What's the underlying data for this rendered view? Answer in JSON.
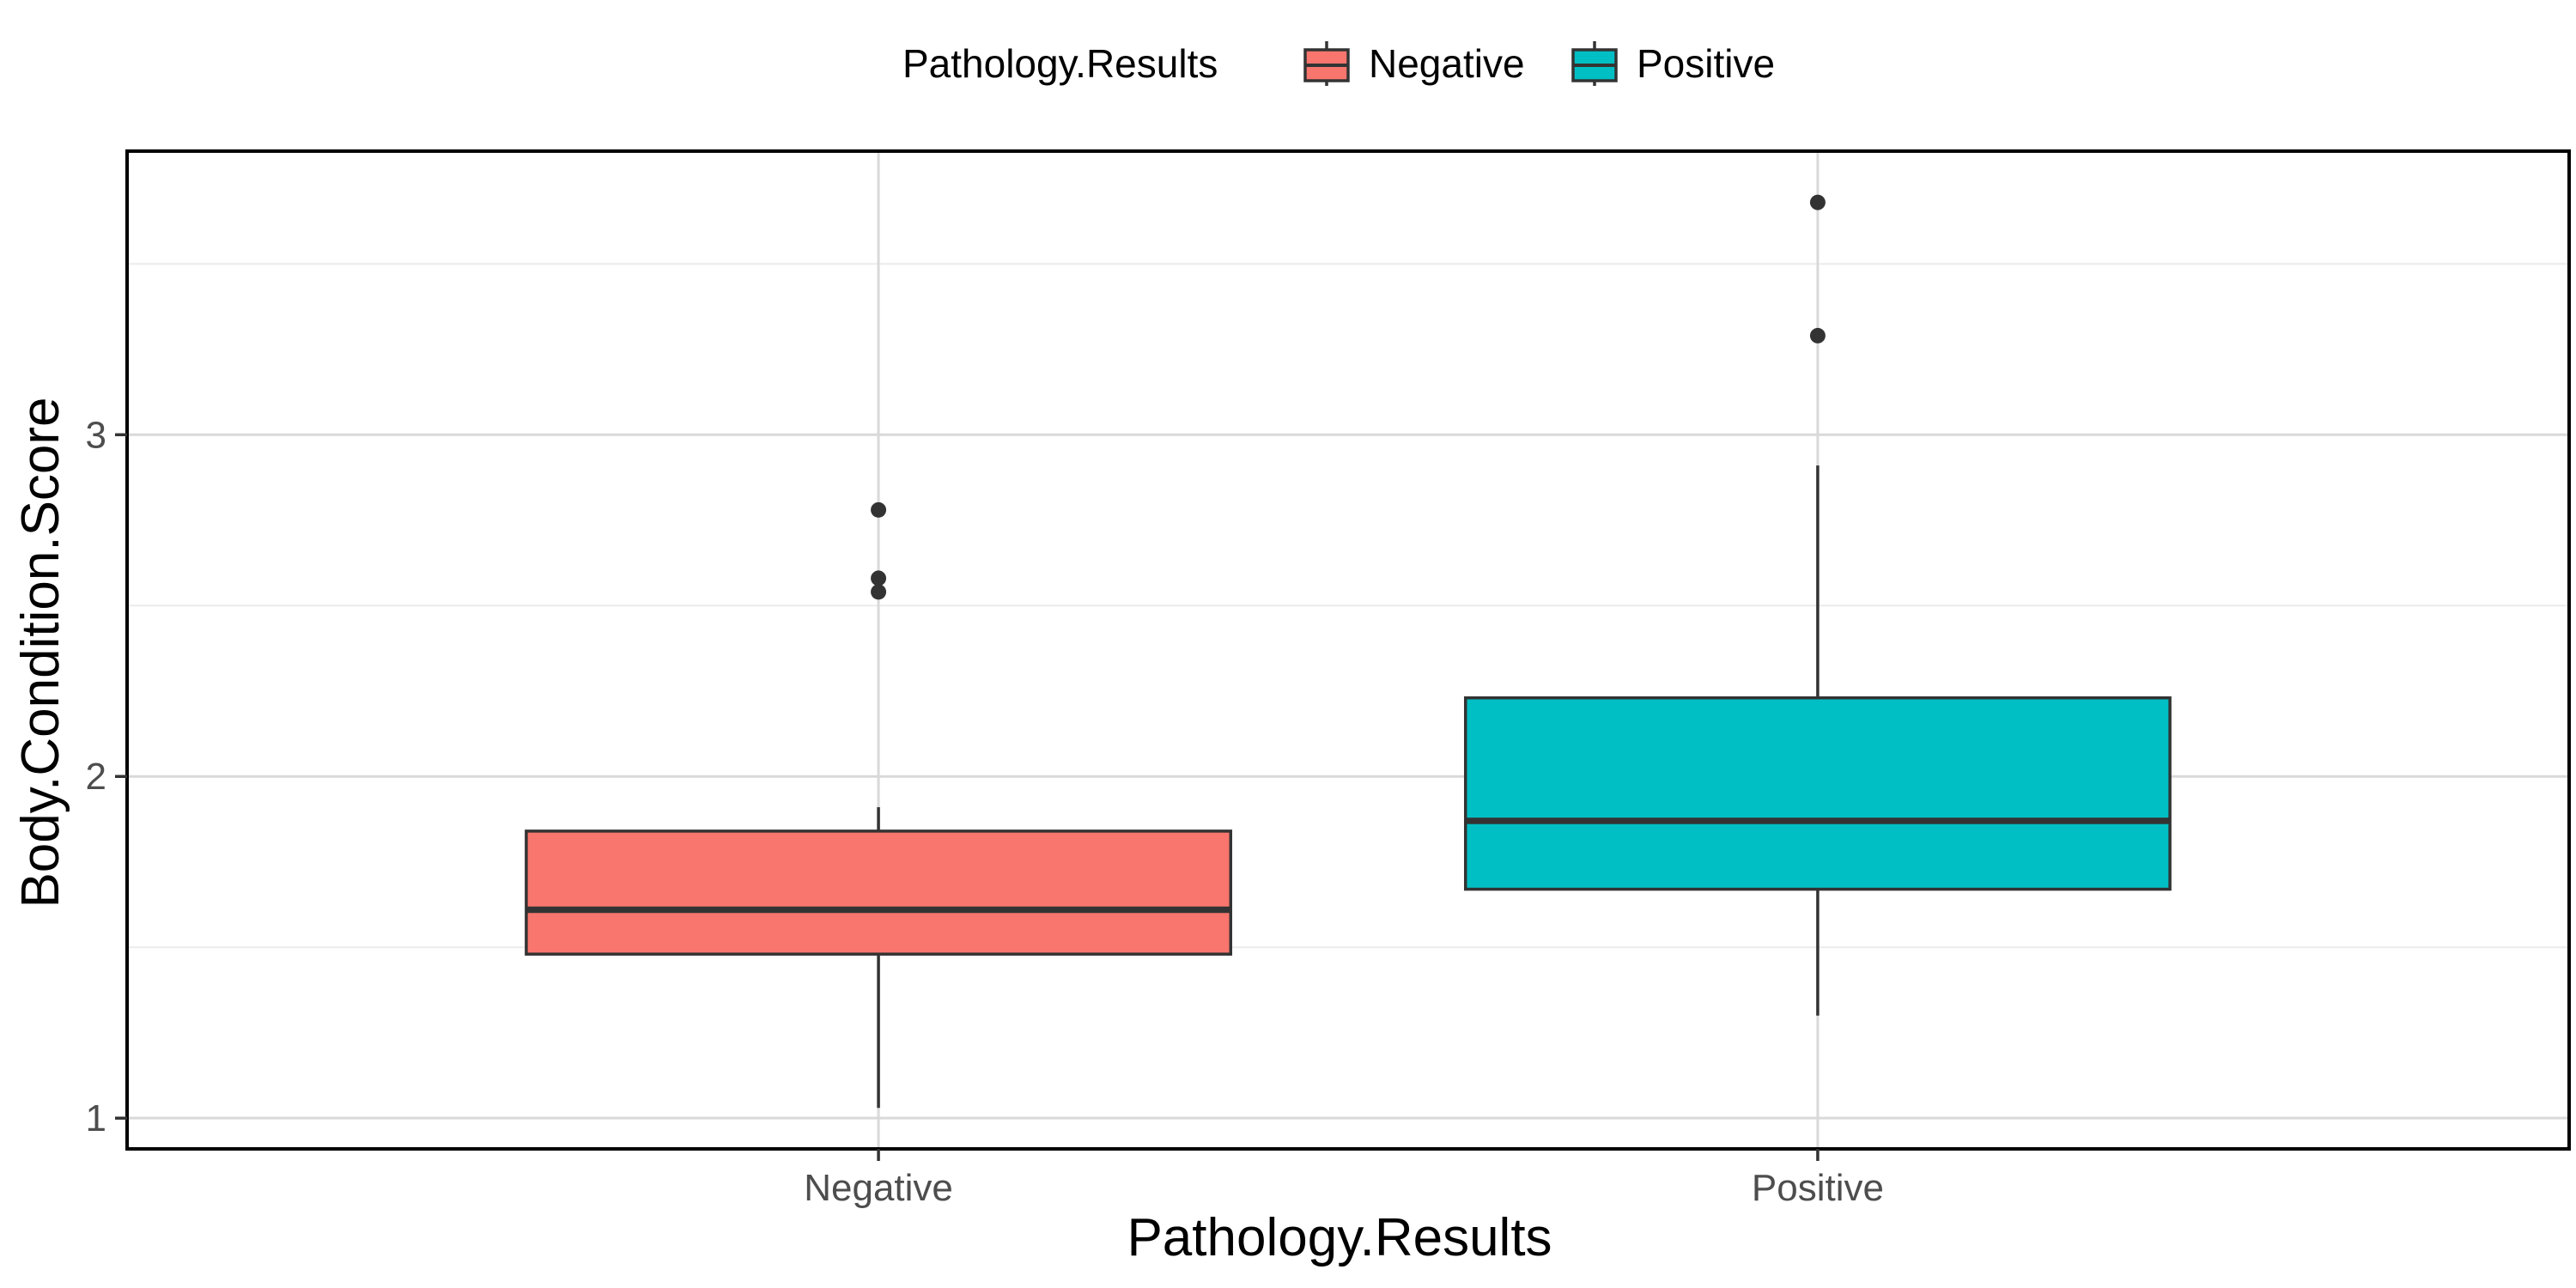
{
  "chart_data": {
    "type": "box",
    "xlabel": "Pathology.Results",
    "ylabel": "Body.Condition.Score",
    "categories": [
      "Negative",
      "Positive"
    ],
    "ylim": [
      0.91,
      3.83
    ],
    "yticks": [
      1,
      2,
      3
    ],
    "grid": true,
    "legend": {
      "title": "Pathology.Results",
      "position": "top",
      "entries": [
        "Negative",
        "Positive"
      ]
    },
    "series": [
      {
        "name": "Negative",
        "color": "#F8766D",
        "whisker_low": 1.03,
        "q1": 1.48,
        "median": 1.61,
        "q3": 1.84,
        "whisker_high": 1.91,
        "outliers": [
          2.54,
          2.58,
          2.78
        ]
      },
      {
        "name": "Positive",
        "color": "#00BFC4",
        "whisker_low": 1.3,
        "q1": 1.67,
        "median": 1.87,
        "q3": 2.23,
        "whisker_high": 2.91,
        "outliers": [
          3.29,
          3.68
        ]
      }
    ]
  }
}
